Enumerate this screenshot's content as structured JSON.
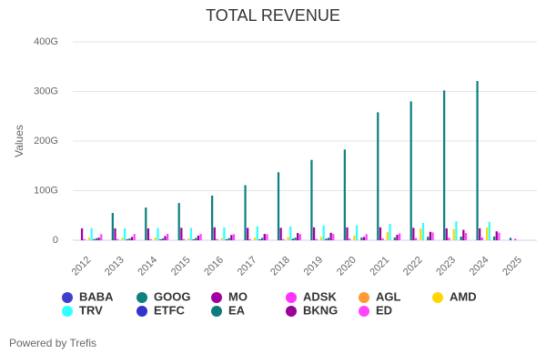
{
  "chart_data": {
    "type": "bar",
    "title": "TOTAL REVENUE",
    "y_label": "Values",
    "categories": [
      "2012",
      "2013",
      "2014",
      "2015",
      "2016",
      "2017",
      "2018",
      "2019",
      "2020",
      "2021",
      "2022",
      "2023",
      "2024",
      "2025"
    ],
    "ylim": [
      0,
      400
    ],
    "yticks": [
      0,
      {
        "value": 100,
        "label": "100G"
      },
      {
        "value": 200,
        "label": "200G"
      },
      {
        "value": 300,
        "label": "300G"
      },
      {
        "value": 400,
        "label": "400G"
      }
    ],
    "grid": true,
    "series": [
      {
        "name": "BABA",
        "color": "#3f3fcf",
        "values": [
          null,
          null,
          null,
          null,
          null,
          null,
          null,
          null,
          null,
          null,
          null,
          null,
          null,
          null
        ]
      },
      {
        "name": "GOOG",
        "color": "#0e8080",
        "values": [
          null,
          55,
          66,
          75,
          90,
          111,
          137,
          162,
          183,
          258,
          280,
          302,
          321,
          5
        ]
      },
      {
        "name": "MO",
        "color": "#a000a0",
        "values": [
          24,
          24,
          24,
          25,
          26,
          25,
          25,
          26,
          26,
          26,
          25,
          24,
          24,
          null
        ]
      },
      {
        "name": "ADSK",
        "color": "#ff33ff",
        "values": [
          2.2,
          2.3,
          2.3,
          2.5,
          2.5,
          2.0,
          2.1,
          2.6,
          3.3,
          3.8,
          4.4,
          5.0,
          5.5,
          3
        ]
      },
      {
        "name": "AGL",
        "color": "#ff9933",
        "values": [
          null,
          null,
          null,
          null,
          null,
          null,
          null,
          null,
          null,
          null,
          null,
          null,
          null,
          null
        ]
      },
      {
        "name": "AMD",
        "color": "#ffd700",
        "values": [
          5.4,
          5.3,
          5.5,
          4.0,
          4.3,
          5.3,
          6.5,
          6.7,
          9.8,
          16.4,
          23.6,
          22.7,
          25.8,
          null
        ]
      },
      {
        "name": "TRV",
        "color": "#33ffff",
        "values": [
          24.5,
          24,
          25,
          25,
          26,
          28,
          28,
          30,
          30,
          33,
          35,
          38,
          37,
          null
        ]
      },
      {
        "name": "ETFC",
        "color": "#3333cc",
        "values": [
          2,
          2,
          2,
          2,
          2,
          2,
          2.9,
          2.9,
          null,
          null,
          null,
          null,
          null,
          null
        ]
      },
      {
        "name": "EA",
        "color": "#0f7b7b",
        "values": [
          4.1,
          3.8,
          3.6,
          4.5,
          4.4,
          4.8,
          5.2,
          5,
          5.5,
          5.6,
          7,
          7.4,
          7.6,
          null
        ]
      },
      {
        "name": "BKNG",
        "color": "#990099",
        "values": [
          5.3,
          6.8,
          8.4,
          9.2,
          10.7,
          12.7,
          14.5,
          15,
          6.8,
          11,
          17,
          21,
          18,
          null
        ]
      },
      {
        "name": "ED",
        "color": "#ff44ff",
        "values": [
          12.2,
          12.4,
          12.9,
          12.6,
          12.1,
          12,
          12.3,
          12.6,
          12.2,
          13.7,
          15.7,
          14.7,
          15.3,
          null
        ]
      }
    ]
  },
  "credits": "Powered by Trefis"
}
